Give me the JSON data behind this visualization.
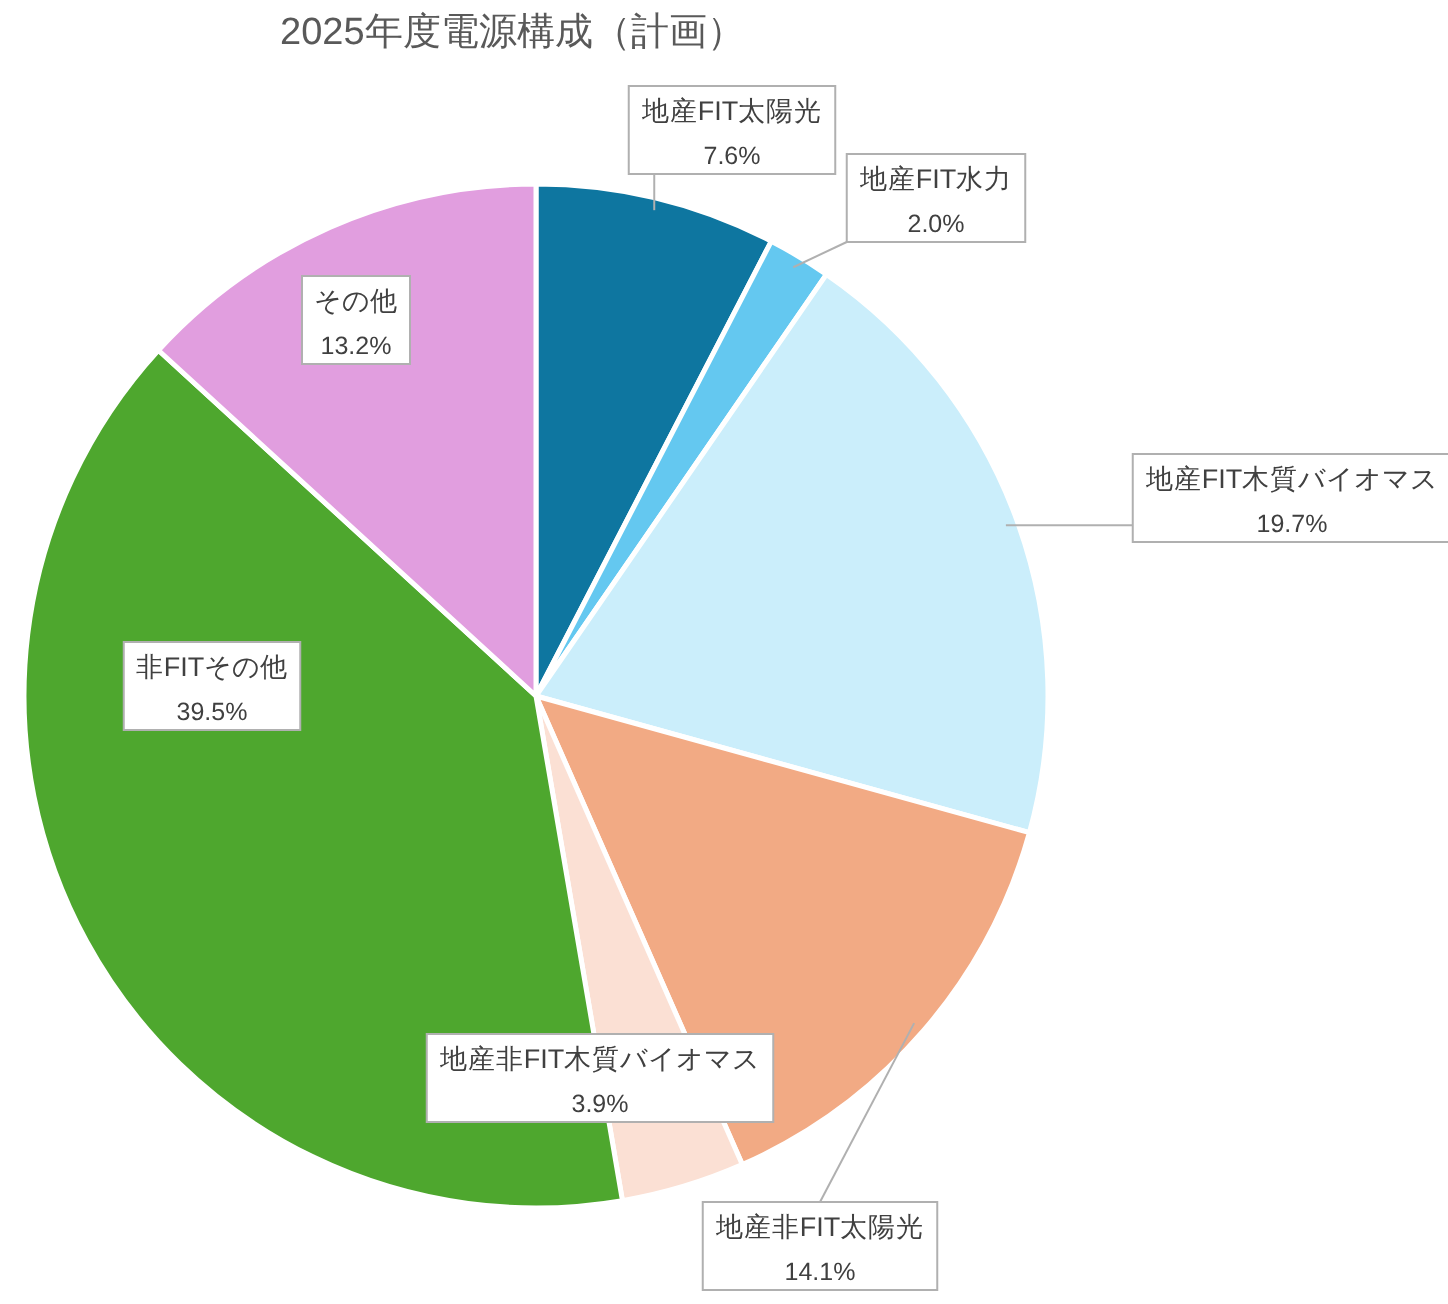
{
  "chart_data": {
    "type": "pie",
    "title": "2025年度電源構成（計画）",
    "categories": [
      "地産FIT太陽光",
      "地産FIT水力",
      "地産FIT木質バイオマス",
      "地産非FIT太陽光",
      "地産非FIT木質バイオマス",
      "非FITその他",
      "その他"
    ],
    "values": [
      7.6,
      2.0,
      19.7,
      14.1,
      3.9,
      39.5,
      13.2
    ],
    "value_labels": [
      "7.6%",
      "2.0%",
      "19.7%",
      "14.1%",
      "3.9%",
      "39.5%",
      "13.2%"
    ],
    "colors": [
      "#0e76a0",
      "#64c8f0",
      "#cbeefb",
      "#f2aa84",
      "#fbe0d4",
      "#4ea72e",
      "#e19edf"
    ]
  }
}
